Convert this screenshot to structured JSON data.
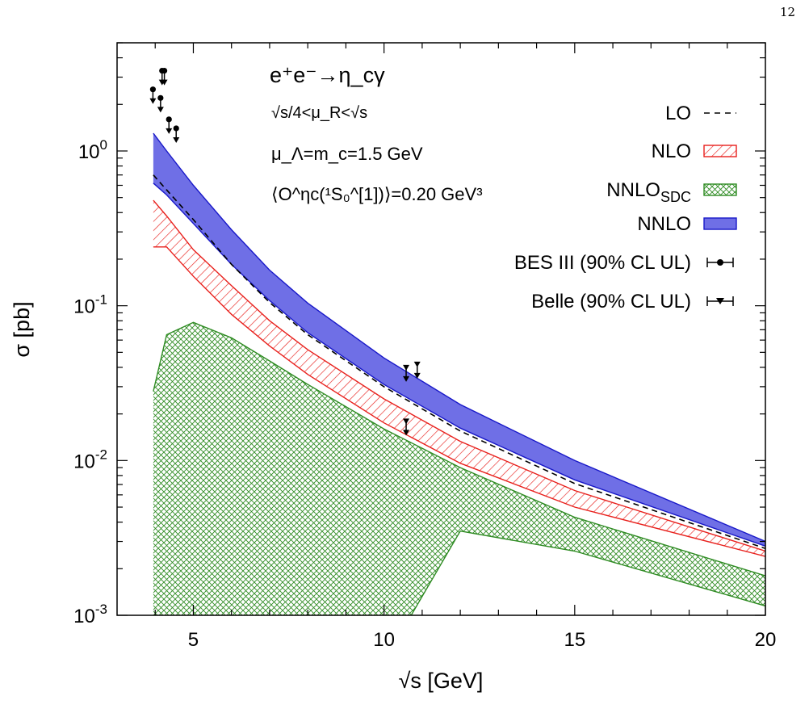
{
  "page_number": "12",
  "chart_data": {
    "type": "line",
    "x_scale": "linear",
    "y_scale": "log",
    "xlim": [
      3,
      20
    ],
    "ylim": [
      0.001,
      5
    ],
    "xlabel": "√s [GeV]",
    "ylabel": "σ [pb]",
    "x_ticks": [
      5,
      10,
      15,
      20
    ],
    "y_ticks": [
      {
        "value": 1,
        "base": "10",
        "exp": "0"
      },
      {
        "value": 0.1,
        "base": "10",
        "exp": "-1"
      },
      {
        "value": 0.01,
        "base": "10",
        "exp": "-2"
      },
      {
        "value": 0.001,
        "base": "10",
        "exp": "-3"
      }
    ],
    "grid": false,
    "legend_position": "top-right",
    "annotations": {
      "process": "e⁺e⁻→η_cγ",
      "scale_range": "√s/4<μ_R<√s",
      "factorization_scale": "μ_Λ=m_c=1.5 GeV",
      "ldme": "⟨O^ηc(¹S₀^[1])⟩=0.20 GeV³"
    },
    "x": [
      3.95,
      4.3,
      5,
      6,
      7,
      8,
      10,
      12,
      15,
      20
    ],
    "series": [
      {
        "name": "LO",
        "style": "dashed",
        "color": "#000000",
        "values": [
          0.7,
          0.56,
          0.36,
          0.185,
          0.105,
          0.065,
          0.03,
          0.0155,
          0.0071,
          0.0027
        ]
      },
      {
        "name": "NLO",
        "style": "hatched-band",
        "color": "#e8201c",
        "lower": [
          0.24,
          0.24,
          0.155,
          0.088,
          0.055,
          0.036,
          0.0175,
          0.0096,
          0.005,
          0.0024
        ],
        "upper": [
          0.48,
          0.38,
          0.23,
          0.135,
          0.08,
          0.052,
          0.025,
          0.0133,
          0.0064,
          0.0026
        ]
      },
      {
        "name": "NNLO_SDC",
        "style": "crosshatched-band",
        "color": "#2e8b22",
        "lower": [
          0.0005,
          0.0005,
          0.0005,
          0.0005,
          0.0005,
          0.0005,
          0.0005,
          0.0035,
          0.0026,
          0.00115
        ],
        "upper": [
          0.028,
          0.065,
          0.078,
          0.062,
          0.044,
          0.031,
          0.016,
          0.009,
          0.0043,
          0.0018
        ]
      },
      {
        "name": "NNLO",
        "style": "filled-band",
        "color": "#6f6fe6",
        "lower": [
          0.62,
          0.52,
          0.34,
          0.185,
          0.108,
          0.067,
          0.031,
          0.0162,
          0.0075,
          0.0028
        ],
        "upper": [
          1.3,
          1.0,
          0.6,
          0.31,
          0.17,
          0.104,
          0.046,
          0.023,
          0.01,
          0.003
        ]
      }
    ],
    "data_points": [
      {
        "name": "BES III (90% CL UL)",
        "marker": "circle-arrow-down",
        "points": [
          {
            "x": 3.94,
            "y": 2.5
          },
          {
            "x": 4.14,
            "y": 2.2
          },
          {
            "x": 4.18,
            "y": 3.3
          },
          {
            "x": 4.24,
            "y": 3.3
          },
          {
            "x": 4.36,
            "y": 1.6
          },
          {
            "x": 4.55,
            "y": 1.4
          }
        ]
      },
      {
        "name": "Belle (90% CL UL)",
        "marker": "triangle-arrow-down",
        "points": [
          {
            "x": 10.58,
            "y": 0.04
          },
          {
            "x": 10.58,
            "y": 0.018
          },
          {
            "x": 10.87,
            "y": 0.042
          }
        ]
      }
    ]
  }
}
